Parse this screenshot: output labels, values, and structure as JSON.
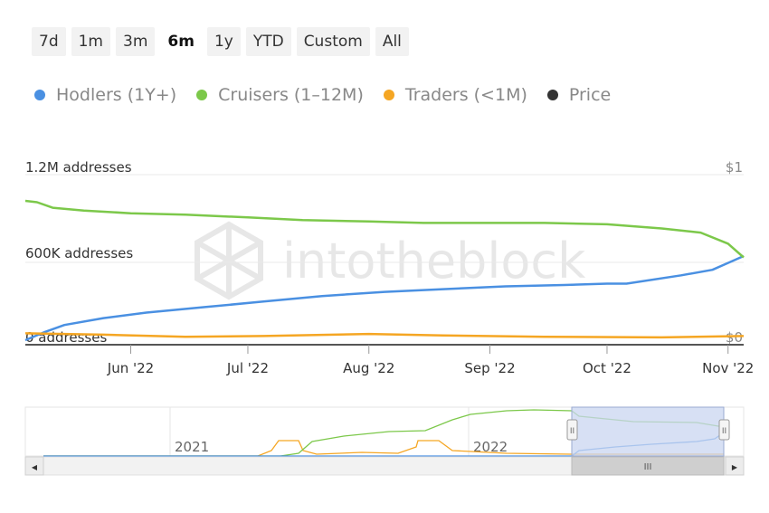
{
  "range_selector": {
    "buttons": [
      "7d",
      "1m",
      "3m",
      "6m",
      "1y",
      "YTD",
      "Custom",
      "All"
    ],
    "active": "6m"
  },
  "legend": [
    {
      "label": "Hodlers (1Y+)",
      "color": "#4a90e2"
    },
    {
      "label": "Cruisers (1–12M)",
      "color": "#7cc84a"
    },
    {
      "label": "Traders (<1M)",
      "color": "#f5a623"
    },
    {
      "label": "Price",
      "color": "#333333"
    }
  ],
  "watermark": "intotheblock",
  "chart_data": {
    "type": "line",
    "ylabel_left": [
      "0 addresses",
      "600K addresses",
      "1.2M addresses"
    ],
    "ylabel_right": [
      "$0",
      "$1"
    ],
    "ylim": [
      0,
      1200000
    ],
    "xticks": [
      {
        "label": "Jun '22",
        "date": "2022-06-01"
      },
      {
        "label": "Jul '22",
        "date": "2022-07-01"
      },
      {
        "label": "Aug '22",
        "date": "2022-08-01"
      },
      {
        "label": "Sep '22",
        "date": "2022-09-01"
      },
      {
        "label": "Oct '22",
        "date": "2022-10-01"
      },
      {
        "label": "Nov '22",
        "date": "2022-11-01"
      }
    ],
    "xlim": [
      "2022-05-05",
      "2022-11-05"
    ],
    "series": [
      {
        "name": "Hodlers (1Y+)",
        "color": "#4a90e2",
        "x": [
          "2022-05-05",
          "2022-05-10",
          "2022-05-15",
          "2022-05-25",
          "2022-06-05",
          "2022-06-20",
          "2022-07-05",
          "2022-07-20",
          "2022-08-05",
          "2022-08-20",
          "2022-09-05",
          "2022-09-20",
          "2022-10-01",
          "2022-10-06",
          "2022-10-20",
          "2022-10-28",
          "2022-11-01",
          "2022-11-05"
        ],
        "values": [
          0,
          60000,
          110000,
          160000,
          200000,
          240000,
          280000,
          320000,
          350000,
          370000,
          390000,
          400000,
          410000,
          410000,
          470000,
          510000,
          560000,
          610000
        ]
      },
      {
        "name": "Cruisers (1–12M)",
        "color": "#7cc84a",
        "x": [
          "2022-05-05",
          "2022-05-08",
          "2022-05-12",
          "2022-05-20",
          "2022-06-01",
          "2022-06-15",
          "2022-07-01",
          "2022-07-15",
          "2022-08-01",
          "2022-08-15",
          "2022-09-01",
          "2022-09-15",
          "2022-10-01",
          "2022-10-15",
          "2022-10-25",
          "2022-11-01",
          "2022-11-05"
        ],
        "values": [
          1010000,
          1000000,
          960000,
          940000,
          920000,
          910000,
          890000,
          870000,
          860000,
          850000,
          850000,
          850000,
          840000,
          810000,
          780000,
          700000,
          600000
        ]
      },
      {
        "name": "Traders (<1M)",
        "color": "#f5a623",
        "x": [
          "2022-05-05",
          "2022-05-25",
          "2022-06-15",
          "2022-07-05",
          "2022-08-01",
          "2022-08-20",
          "2022-09-15",
          "2022-10-15",
          "2022-11-05"
        ],
        "values": [
          50000,
          40000,
          25000,
          30000,
          45000,
          35000,
          25000,
          20000,
          30000
        ]
      }
    ]
  },
  "navigator": {
    "year_labels": [
      "2021",
      "2022"
    ],
    "handle_glyph": "II",
    "scroll_left_glyph": "◀",
    "scroll_right_glyph": "▶",
    "scroll_thumb_glyph": "III"
  }
}
